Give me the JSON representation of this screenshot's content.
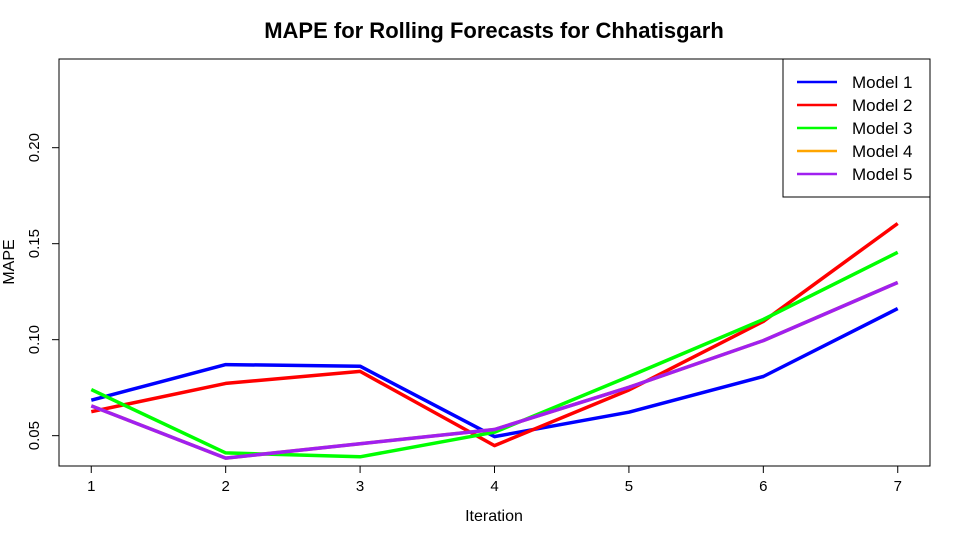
{
  "chart_data": {
    "type": "line",
    "title": "MAPE for Rolling Forecasts for Chhatisgarh",
    "xlabel": "Iteration",
    "ylabel": "MAPE",
    "x": [
      1,
      2,
      3,
      4,
      5,
      6,
      7
    ],
    "xlim": [
      0.76,
      7.24
    ],
    "ylim": [
      0.0342,
      0.2462
    ],
    "xticks": [
      1,
      2,
      3,
      4,
      5,
      6,
      7
    ],
    "yticks": [
      0.05,
      0.1,
      0.15,
      0.2
    ],
    "ytick_labels": [
      "0.05",
      "0.10",
      "0.15",
      "0.20"
    ],
    "legend_position": "top-right",
    "series": [
      {
        "name": "Model 1",
        "color": "#0000ff",
        "values": [
          0.0685,
          0.087,
          0.0862,
          0.0495,
          0.0622,
          0.0808,
          0.1162
        ]
      },
      {
        "name": "Model 2",
        "color": "#ff0000",
        "values": [
          0.0625,
          0.0772,
          0.0835,
          0.0448,
          0.0738,
          0.1095,
          0.1605
        ]
      },
      {
        "name": "Model 3",
        "color": "#00ff00",
        "values": [
          0.074,
          0.041,
          0.039,
          0.0518,
          0.0808,
          0.1105,
          0.1455
        ]
      },
      {
        "name": "Model 4",
        "color": "#ffa500",
        "values": [
          0.0655,
          0.0383,
          0.0458,
          0.0532,
          0.0752,
          0.0995,
          0.1298
        ]
      },
      {
        "name": "Model 5",
        "color": "#a020f0",
        "values": [
          0.0655,
          0.0383,
          0.0458,
          0.0532,
          0.0752,
          0.0995,
          0.1298
        ]
      }
    ]
  }
}
